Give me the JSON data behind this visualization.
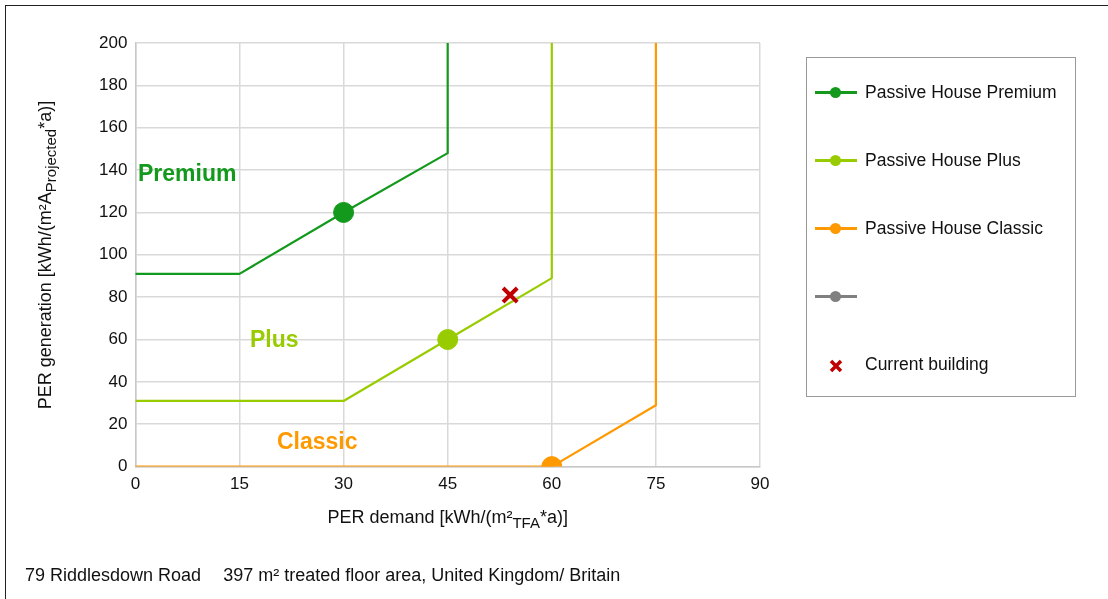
{
  "chart_data": {
    "type": "line",
    "xlabel": "PER demand [kWh/(m²$_{TFA}$*a)]",
    "ylabel": "PER generation [kWh/(m²A$_{Projected}$*a)]",
    "xlim": [
      0,
      90
    ],
    "xticks": [
      0,
      15,
      30,
      45,
      60,
      75,
      90
    ],
    "ylim": [
      0,
      200
    ],
    "yticks": [
      0,
      20,
      40,
      60,
      80,
      100,
      120,
      140,
      160,
      180,
      200
    ],
    "grid": true,
    "legend": "right",
    "marker": "none",
    "line_style": "solid",
    "series": [
      {
        "name": "Passive House Premium",
        "color": "#139a1c",
        "x": [
          0,
          15,
          30,
          45,
          45
        ],
        "values": [
          91,
          91,
          120,
          148,
          200
        ]
      },
      {
        "name": "Passive House Plus",
        "color": "#99cc00",
        "x": [
          0,
          30,
          45,
          60,
          60
        ],
        "values": [
          31,
          31,
          60,
          89,
          200
        ]
      },
      {
        "name": "Passive House Classic",
        "color": "#ff9900",
        "x": [
          0,
          60,
          75,
          75
        ],
        "values": [
          0,
          0,
          29,
          200
        ]
      },
      {
        "color": "#808080"
      },
      {
        "name": "Current building",
        "type": "scatter",
        "marker": "cross",
        "color": "#c00000",
        "x": [
          54
        ],
        "values": [
          81
        ]
      },
      {
        "type": "scatter",
        "marker": "circle",
        "color": "#139a1c",
        "x": [
          30
        ],
        "values": [
          120
        ]
      },
      {
        "type": "scatter",
        "marker": "circle",
        "color": "#99cc00",
        "x": [
          45
        ],
        "values": [
          60
        ]
      },
      {
        "type": "scatter",
        "marker": "circle",
        "color": "#ff9900",
        "x": [
          60
        ],
        "values": [
          0
        ]
      }
    ],
    "annotations": [
      "Premium",
      "Plus",
      "Classic",
      "79 Riddlesdown Road",
      "397 m² treated floor area, United Kingdom/ Britain"
    ]
  }
}
